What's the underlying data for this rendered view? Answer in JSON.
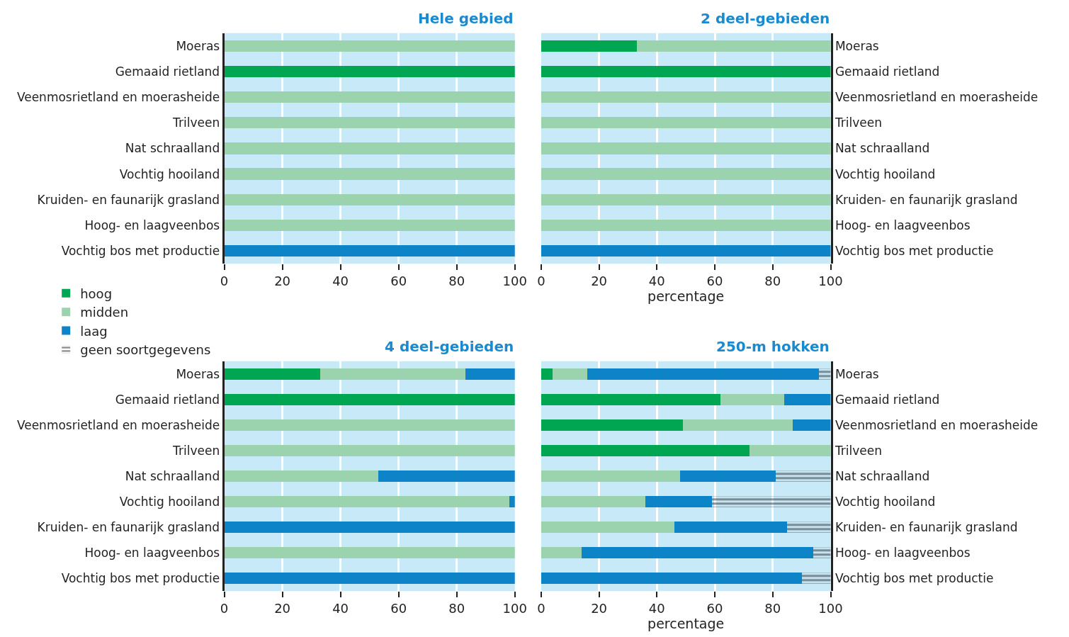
{
  "chart_data": [
    {
      "type": "bar",
      "orientation": "horizontal",
      "stacked": true,
      "title": "Hele gebied",
      "legend": "bottom left",
      "categories": [
        "Moeras",
        "Gemaaid rietland",
        "Veenmosrietland en moerasheide",
        "Trilveen",
        "Nat schraalland",
        "Vochtig hooiland",
        "Kruiden- en faunarijk grasland",
        "Hoog- en laagveenbos",
        "Vochtig bos met productie"
      ],
      "series": [
        {
          "name": "hoog",
          "color": "#00a651",
          "values": [
            0,
            100,
            0,
            0,
            0,
            0,
            0,
            0,
            0
          ]
        },
        {
          "name": "midden",
          "color": "#9bd3ae",
          "values": [
            100,
            0,
            100,
            100,
            100,
            100,
            100,
            100,
            0
          ]
        },
        {
          "name": "laag",
          "color": "#0e84c8",
          "values": [
            0,
            0,
            0,
            0,
            0,
            0,
            0,
            0,
            100
          ]
        },
        {
          "name": "geen soortgegevens",
          "color": "#222222",
          "values": [
            0,
            0,
            0,
            0,
            0,
            0,
            0,
            0,
            0
          ]
        }
      ],
      "xlim": [
        0,
        100
      ],
      "xticks": [
        0,
        20,
        40,
        60,
        80,
        100
      ],
      "grid": "x"
    },
    {
      "type": "bar",
      "orientation": "horizontal",
      "stacked": true,
      "title": "2 deel-gebieden",
      "xlabel": "percentage",
      "categories": [
        "Moeras",
        "Gemaaid rietland",
        "Veenmosrietland en moerasheide",
        "Trilveen",
        "Nat schraalland",
        "Vochtig hooiland",
        "Kruiden- en faunarijk grasland",
        "Hoog- en laagveenbos",
        "Vochtig bos met productie"
      ],
      "series": [
        {
          "color": "#00a651",
          "values": [
            33,
            100,
            0,
            0,
            0,
            0,
            0,
            0,
            0
          ]
        },
        {
          "color": "#9bd3ae",
          "values": [
            67,
            0,
            100,
            100,
            100,
            100,
            100,
            100,
            0
          ]
        },
        {
          "color": "#0e84c8",
          "values": [
            0,
            0,
            0,
            0,
            0,
            0,
            0,
            0,
            100
          ]
        },
        {
          "color": "#222222",
          "values": [
            0,
            0,
            0,
            0,
            0,
            0,
            0,
            0,
            0
          ]
        }
      ],
      "xlim": [
        0,
        100
      ],
      "xticks": [
        0,
        20,
        40,
        60,
        80,
        100
      ],
      "grid": "x"
    },
    {
      "type": "bar",
      "orientation": "horizontal",
      "stacked": true,
      "title": "4 deel-gebieden",
      "categories": [
        "Moeras",
        "Gemaaid rietland",
        "Veenmosrietland en moerasheide",
        "Trilveen",
        "Nat schraalland",
        "Vochtig hooiland",
        "Kruiden- en faunarijk grasland",
        "Hoog- en laagveenbos",
        "Vochtig bos met productie"
      ],
      "series": [
        {
          "color": "#00a651",
          "values": [
            33,
            100,
            0,
            0,
            0,
            0,
            0,
            0,
            0
          ]
        },
        {
          "color": "#9bd3ae",
          "values": [
            50,
            0,
            100,
            100,
            53,
            98,
            0,
            100,
            0
          ]
        },
        {
          "color": "#0e84c8",
          "values": [
            17,
            0,
            0,
            0,
            47,
            2,
            100,
            0,
            100
          ]
        },
        {
          "color": "#222222",
          "values": [
            0,
            0,
            0,
            0,
            0,
            0,
            0,
            0,
            0
          ]
        }
      ],
      "xlim": [
        0,
        100
      ],
      "xticks": [
        0,
        20,
        40,
        60,
        80,
        100
      ],
      "grid": "x"
    },
    {
      "type": "bar",
      "orientation": "horizontal",
      "stacked": true,
      "title": "250-m hokken",
      "xlabel": "percentage",
      "categories": [
        "Moeras",
        "Gemaaid rietland",
        "Veenmosrietland en moerasheide",
        "Trilveen",
        "Nat schraalland",
        "Vochtig hooiland",
        "Kruiden- en faunarijk grasland",
        "Hoog- en laagveenbos",
        "Vochtig bos met productie"
      ],
      "series": [
        {
          "color": "#00a651",
          "values": [
            4,
            62,
            49,
            72,
            0,
            0,
            0,
            0,
            0
          ]
        },
        {
          "color": "#9bd3ae",
          "values": [
            12,
            22,
            38,
            28,
            48,
            36,
            46,
            14,
            0
          ]
        },
        {
          "color": "#0e84c8",
          "values": [
            80,
            16,
            13,
            0,
            33,
            23,
            39,
            80,
            90
          ]
        },
        {
          "color": "#222222",
          "values": [
            4,
            0,
            0,
            0,
            19,
            41,
            15,
            6,
            10
          ]
        }
      ],
      "xlim": [
        0,
        100
      ],
      "xticks": [
        0,
        20,
        40,
        60,
        80,
        100
      ],
      "grid": "x"
    }
  ]
}
